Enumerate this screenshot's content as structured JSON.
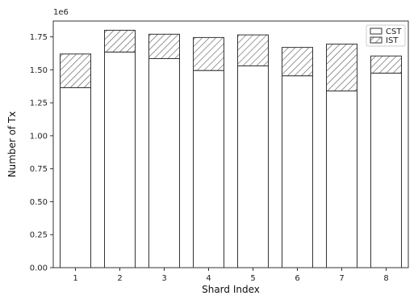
{
  "chart_data": {
    "type": "bar",
    "stacked": true,
    "categories": [
      "1",
      "2",
      "3",
      "4",
      "5",
      "6",
      "7",
      "8"
    ],
    "series": [
      {
        "name": "CST",
        "values": [
          1365000,
          1635000,
          1585000,
          1495000,
          1530000,
          1455000,
          1340000,
          1475000
        ],
        "fill": "#ffffff",
        "pattern": "none"
      },
      {
        "name": "IST",
        "values": [
          255000,
          165000,
          185000,
          250000,
          235000,
          215000,
          355000,
          130000
        ],
        "fill": "#ffffff",
        "pattern": "hatch"
      }
    ],
    "xlabel": "Shard Index",
    "ylabel": "Number of Tx",
    "scale_label": "1e6",
    "ylim": [
      0,
      1870000
    ],
    "yticks": [
      0,
      250000,
      500000,
      750000,
      1000000,
      1250000,
      1500000,
      1750000
    ],
    "ytick_labels": [
      "0.00",
      "0.25",
      "0.50",
      "0.75",
      "1.00",
      "1.25",
      "1.50",
      "1.75"
    ],
    "grid": false,
    "legend": {
      "placement": "top-right",
      "entries": [
        "CST",
        "IST"
      ]
    },
    "colors": {
      "edge": "#333333",
      "hatch": "#555555"
    }
  }
}
